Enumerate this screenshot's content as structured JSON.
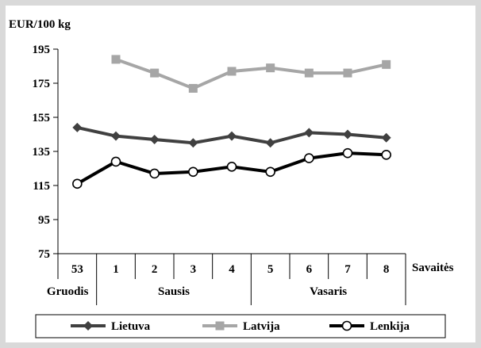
{
  "chart_data": {
    "type": "line",
    "ylabel": "EUR/100 kg",
    "xlabel": "Savaitės",
    "ylim": [
      75,
      195
    ],
    "yticks": [
      75,
      95,
      115,
      135,
      155,
      175,
      195
    ],
    "categories": [
      "53",
      "1",
      "2",
      "3",
      "4",
      "5",
      "6",
      "7",
      "8"
    ],
    "months": [
      {
        "label": "Gruodis",
        "from": 0,
        "to": 0
      },
      {
        "label": "Sausis",
        "from": 1,
        "to": 4
      },
      {
        "label": "Vasaris",
        "from": 5,
        "to": 8
      }
    ],
    "grid": false,
    "legend_position": "bottom",
    "series": [
      {
        "name": "Lietuva",
        "color": "#404040",
        "marker": "diamond",
        "values": [
          149,
          144,
          142,
          140,
          144,
          140,
          146,
          145,
          143
        ]
      },
      {
        "name": "Latvija",
        "color": "#a6a6a6",
        "marker": "square",
        "values": [
          null,
          189,
          181,
          172,
          182,
          184,
          181,
          181,
          186
        ]
      },
      {
        "name": "Lenkija",
        "color": "#000000",
        "marker": "circle",
        "values": [
          116,
          129,
          122,
          123,
          126,
          123,
          131,
          134,
          133
        ]
      }
    ]
  }
}
